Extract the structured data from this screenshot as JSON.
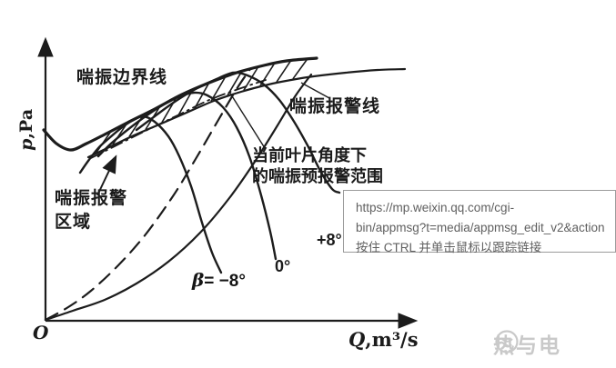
{
  "colors": {
    "ink": "#1c1c1c",
    "tooltip_border": "#9b9b9b",
    "tooltip_text": "#5f5f5f",
    "watermark": "#c9c9c9"
  },
  "diagram_labels": {
    "surge_boundary_line": "喘振边界线",
    "surge_alarm_line": "喘振报警线",
    "surge_alarm_region": "喘振报警\n区域",
    "current_blade_note": "当前叶片角度下\n的喘振预报警范围",
    "beta_symbol": "β",
    "beta_value": "= −8°",
    "angle_zero": "0°",
    "angle_plus8": "+8°",
    "y_axis_symbol": "p",
    "y_axis_units": ",Pa",
    "x_axis_symbol": "Q",
    "x_axis_units": ",m³/s",
    "origin": "O"
  },
  "tooltip": {
    "url_line1": "https://mp.weixin.qq.com/cgi-",
    "url_line2": "bin/appmsg?t=media/appmsg_edit_v2&action",
    "hint": "按住 CTRL 并单击鼠标以跟踪链接"
  },
  "watermark": {
    "text": "热与电"
  },
  "chart_data": {
    "type": "line",
    "title": "",
    "xlabel": "Q,m³/s",
    "ylabel": "p,Pa",
    "axis_ranges": "qualitative sketch, no numeric ticks",
    "grid": false,
    "legend_position": "none",
    "units": "pixel coordinates of 656x405 canvas, y down",
    "series": [
      {
        "id": "surge-boundary",
        "name": "喘振边界线",
        "style": "solid",
        "width": 3.2,
        "points": [
          [
            48,
            143
          ],
          [
            62,
            158
          ],
          [
            78,
            165
          ],
          [
            95,
            158
          ],
          [
            115,
            148
          ],
          [
            140,
            135
          ],
          [
            170,
            120
          ],
          [
            200,
            104
          ],
          [
            230,
            91
          ],
          [
            260,
            80
          ],
          [
            290,
            72
          ],
          [
            315,
            67
          ],
          [
            348,
            64
          ]
        ]
      },
      {
        "id": "surge-alarm",
        "name": "喘振报警线",
        "style": "solid",
        "width": 2.2,
        "points": [
          [
            97,
            173
          ],
          [
            120,
            162
          ],
          [
            145,
            150
          ],
          [
            175,
            137
          ],
          [
            205,
            124
          ],
          [
            235,
            111
          ],
          [
            265,
            101
          ],
          [
            295,
            93
          ],
          [
            320,
            88
          ],
          [
            345,
            84
          ],
          [
            380,
            80
          ],
          [
            415,
            77
          ],
          [
            445,
            76
          ]
        ]
      },
      {
        "id": "pre-alarm-range",
        "name": "当前叶片角度下的喘振预报警范围",
        "style": "dashdot",
        "width": 1.8,
        "points": [
          [
            100,
            174
          ],
          [
            130,
            159
          ],
          [
            160,
            144
          ],
          [
            195,
            127
          ],
          [
            230,
            110
          ],
          [
            262,
            98
          ],
          [
            292,
            88
          ]
        ]
      },
      {
        "id": "dashed-operating-curve",
        "name": "dashed curve from origin",
        "style": "dashed",
        "width": 2.2,
        "points": [
          [
            50,
            352
          ],
          [
            75,
            338
          ],
          [
            100,
            320
          ],
          [
            130,
            292
          ],
          [
            160,
            258
          ],
          [
            190,
            216
          ],
          [
            215,
            175
          ],
          [
            240,
            132
          ],
          [
            260,
            98
          ],
          [
            275,
            76
          ]
        ]
      },
      {
        "id": "solid-operating-curve",
        "name": "solid curve from origin",
        "style": "solid",
        "width": 2.2,
        "points": [
          [
            50,
            352
          ],
          [
            80,
            342
          ],
          [
            115,
            330
          ],
          [
            150,
            312
          ],
          [
            185,
            288
          ],
          [
            220,
            256
          ],
          [
            252,
            218
          ],
          [
            280,
            178
          ],
          [
            305,
            138
          ],
          [
            325,
            105
          ],
          [
            342,
            82
          ]
        ]
      },
      {
        "id": "fan-curve-minus8",
        "name": "β = −8°",
        "style": "solid",
        "width": 2.4,
        "points": [
          [
            88,
            190
          ],
          [
            97,
            177
          ],
          [
            108,
            163
          ],
          [
            120,
            152
          ],
          [
            133,
            141
          ],
          [
            145,
            133
          ],
          [
            157,
            128
          ],
          [
            170,
            134
          ],
          [
            185,
            150
          ],
          [
            197,
            172
          ],
          [
            210,
            205
          ],
          [
            222,
            245
          ],
          [
            233,
            278
          ],
          [
            243,
            300
          ]
        ]
      },
      {
        "id": "fan-curve-0",
        "name": "0°",
        "style": "solid",
        "width": 2.4,
        "points": [
          [
            108,
            172
          ],
          [
            122,
            158
          ],
          [
            140,
            143
          ],
          [
            160,
            128
          ],
          [
            180,
            115
          ],
          [
            198,
            106
          ],
          [
            213,
            102
          ],
          [
            228,
            105
          ],
          [
            245,
            118
          ],
          [
            260,
            140
          ],
          [
            274,
            172
          ],
          [
            287,
            215
          ],
          [
            297,
            255
          ],
          [
            303,
            285
          ]
        ]
      },
      {
        "id": "fan-curve-plus8",
        "name": "+8°",
        "style": "solid",
        "width": 2.4,
        "points": [
          [
            150,
            143
          ],
          [
            170,
            128
          ],
          [
            192,
            112
          ],
          [
            215,
            98
          ],
          [
            238,
            87
          ],
          [
            256,
            80
          ],
          [
            272,
            83
          ],
          [
            290,
            93
          ],
          [
            307,
            110
          ],
          [
            322,
            132
          ],
          [
            338,
            160
          ],
          [
            352,
            188
          ],
          [
            365,
            208
          ],
          [
            373,
            212
          ]
        ]
      }
    ],
    "hatch": {
      "between": [
        "surge-alarm",
        "surge-boundary"
      ],
      "x_from": 106,
      "x_to": 333,
      "step": 18,
      "dx": 15,
      "width": 1.6
    },
    "annotations": {
      "leader_lines": [
        {
          "from": [
            362,
            108
          ],
          "to": [
            331,
            91
          ]
        },
        {
          "from": [
            252,
            101
          ],
          "to": [
            291,
            163
          ]
        }
      ],
      "region_arrow": {
        "from": [
          107,
          215
        ],
        "to": [
          127,
          173
        ]
      }
    }
  }
}
